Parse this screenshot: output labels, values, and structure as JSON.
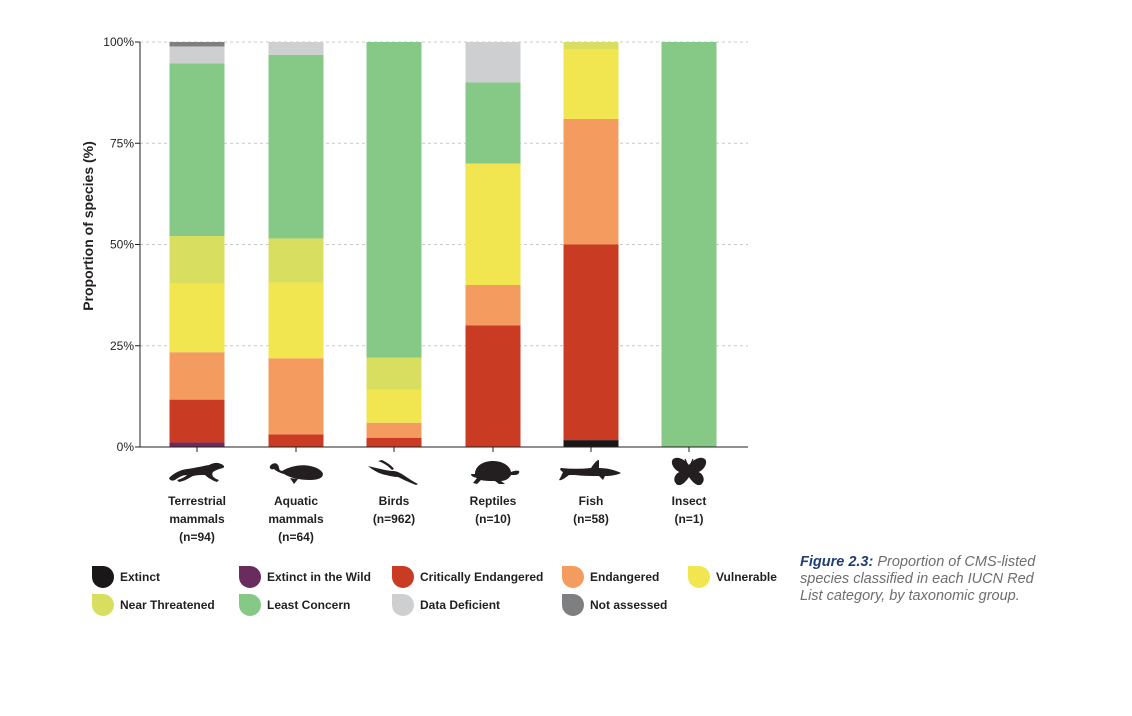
{
  "chart_data": {
    "type": "bar",
    "stacked": true,
    "ylabel": "Proportion of species (%)",
    "ylim": [
      0,
      100
    ],
    "yticks": [
      "0%",
      "25%",
      "50%",
      "75%",
      "100%"
    ],
    "ytick_values": [
      0,
      25,
      50,
      75,
      100
    ],
    "grid": "horizontal dashed",
    "categories": [
      {
        "lines": [
          "Terrestrial",
          "mammals",
          "(n=94)"
        ],
        "icon": "cheetah-icon"
      },
      {
        "lines": [
          "Aquatic",
          "mammals",
          "(n=64)"
        ],
        "icon": "whale-icon"
      },
      {
        "lines": [
          "Birds",
          "(n=962)"
        ],
        "icon": "bird-icon"
      },
      {
        "lines": [
          "Reptiles",
          "(n=10)"
        ],
        "icon": "turtle-icon"
      },
      {
        "lines": [
          "Fish",
          "(n=58)"
        ],
        "icon": "shark-icon"
      },
      {
        "lines": [
          "Insect",
          "(n=1)"
        ],
        "icon": "butterfly-icon"
      }
    ],
    "series": [
      {
        "name": "Extinct",
        "color": "#1a1718",
        "values": [
          0,
          0,
          0,
          0,
          1.7,
          0
        ]
      },
      {
        "name": "Extinct in the Wild",
        "color": "#6a2b5e",
        "values": [
          1.1,
          0,
          0,
          0,
          0,
          0
        ]
      },
      {
        "name": "Critically Endangered",
        "color": "#c93b23",
        "values": [
          10.6,
          3.1,
          2.3,
          30,
          48.3,
          0
        ]
      },
      {
        "name": "Endangered",
        "color": "#f49c5f",
        "values": [
          11.7,
          18.8,
          3.7,
          10,
          31,
          0
        ]
      },
      {
        "name": "Vulnerable",
        "color": "#f1e64f",
        "values": [
          17.0,
          18.7,
          8.1,
          30,
          17.2,
          0
        ]
      },
      {
        "name": "Near Threatened",
        "color": "#d8df60",
        "values": [
          11.7,
          10.9,
          8.0,
          0,
          1.8,
          0
        ]
      },
      {
        "name": "Least Concern",
        "color": "#86c987",
        "values": [
          42.6,
          45.3,
          77.9,
          20,
          0,
          100
        ]
      },
      {
        "name": "Data Deficient",
        "color": "#cdcfd1",
        "values": [
          4.2,
          3.2,
          0,
          10,
          0,
          0
        ]
      },
      {
        "name": "Not assessed",
        "color": "#7e7f81",
        "values": [
          1.1,
          0,
          0,
          0,
          0,
          0
        ]
      }
    ]
  },
  "legend": {
    "items": [
      {
        "label": "Extinct",
        "color": "#1a1718"
      },
      {
        "label": "Extinct in the Wild",
        "color": "#6a2b5e"
      },
      {
        "label": "Critically Endangered",
        "color": "#c93b23"
      },
      {
        "label": "Endangered",
        "color": "#f49c5f"
      },
      {
        "label": "Vulnerable",
        "color": "#f1e64f"
      },
      {
        "label": "Near Threatened",
        "color": "#d8df60"
      },
      {
        "label": "Least Concern",
        "color": "#86c987"
      },
      {
        "label": "Data Deficient",
        "color": "#cdcfd1"
      },
      {
        "label": "Not assessed",
        "color": "#7e7f81"
      }
    ]
  },
  "caption": {
    "figure": "Figure 2.3:",
    "text": "Proportion of CMS-listed species classified in each IUCN Red List category, by taxonomic group."
  }
}
